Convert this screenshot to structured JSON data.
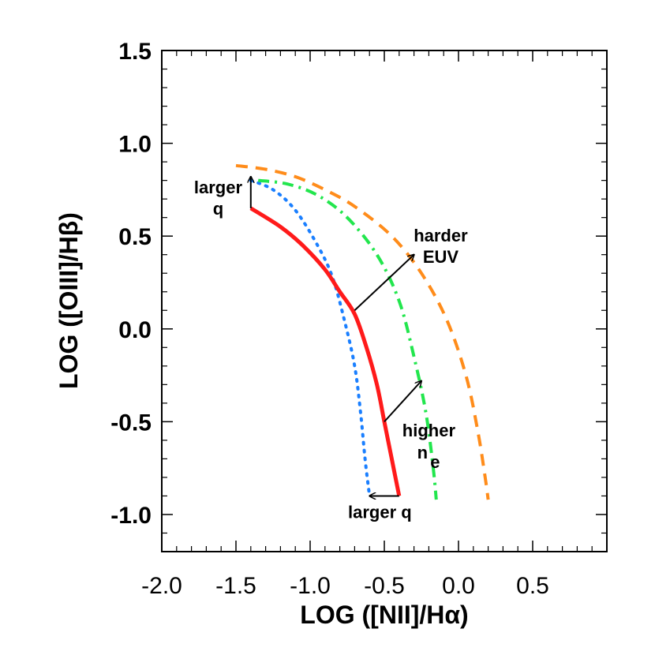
{
  "chart_data": {
    "type": "line",
    "title": "",
    "xlabel": "LOG ([NII]/Hα)",
    "ylabel": "LOG ([OIII]/Hβ)",
    "xlim": [
      -2.0,
      1.0
    ],
    "ylim": [
      -1.2,
      1.5
    ],
    "x_ticks": [
      {
        "value": -2.0,
        "label": "-2.0"
      },
      {
        "value": -1.5,
        "label": "-1.5"
      },
      {
        "value": -1.0,
        "label": "-1.0"
      },
      {
        "value": -0.5,
        "label": "-0.5"
      },
      {
        "value": 0.0,
        "label": "0.0"
      },
      {
        "value": 0.5,
        "label": "0.5"
      }
    ],
    "y_ticks": [
      {
        "value": -1.0,
        "label": "-1.0"
      },
      {
        "value": -0.5,
        "label": "-0.5"
      },
      {
        "value": 0.0,
        "label": "0.0"
      },
      {
        "value": 0.5,
        "label": "0.5"
      },
      {
        "value": 1.0,
        "label": "1.0"
      },
      {
        "value": 1.5,
        "label": "1.5"
      }
    ],
    "grid": false,
    "series": [
      {
        "style": "solid",
        "color": "#ff1a1a",
        "x": [
          -1.4,
          -1.2,
          -1.05,
          -0.9,
          -0.8,
          -0.7,
          -0.62,
          -0.55,
          -0.5,
          -0.45,
          -0.4
        ],
        "y": [
          0.65,
          0.55,
          0.45,
          0.32,
          0.2,
          0.08,
          -0.1,
          -0.3,
          -0.5,
          -0.7,
          -0.9
        ]
      },
      {
        "style": "dotted",
        "color": "#1a7fff",
        "x": [
          -1.4,
          -1.25,
          -1.1,
          -0.95,
          -0.85,
          -0.77,
          -0.7,
          -0.66,
          -0.63,
          -0.6
        ],
        "y": [
          0.8,
          0.75,
          0.64,
          0.45,
          0.28,
          0.05,
          -0.2,
          -0.45,
          -0.7,
          -0.9
        ]
      },
      {
        "style": "dashdot",
        "color": "#22e64d",
        "x": [
          -1.35,
          -1.15,
          -0.95,
          -0.75,
          -0.55,
          -0.4,
          -0.3,
          -0.22,
          -0.17,
          -0.15
        ],
        "y": [
          0.8,
          0.78,
          0.72,
          0.6,
          0.4,
          0.15,
          -0.15,
          -0.45,
          -0.75,
          -0.92
        ]
      },
      {
        "style": "dashed",
        "color": "#ff8c1a",
        "x": [
          -1.5,
          -1.3,
          -1.1,
          -0.9,
          -0.7,
          -0.45,
          -0.25,
          -0.08,
          0.05,
          0.13,
          0.18,
          0.2
        ],
        "y": [
          0.88,
          0.86,
          0.82,
          0.75,
          0.66,
          0.5,
          0.3,
          0.05,
          -0.25,
          -0.55,
          -0.8,
          -0.92
        ]
      }
    ],
    "annotations": [
      {
        "id": "larger_q_top",
        "lines": [
          "larger",
          "q"
        ],
        "x": -1.62,
        "y": 0.73
      },
      {
        "id": "harder_euv",
        "lines": [
          "harder",
          "EUV"
        ],
        "x": -0.12,
        "y": 0.47
      },
      {
        "id": "higher_ne",
        "lines": [
          "higher",
          "n",
          "e"
        ],
        "x": -0.2,
        "y": -0.58
      },
      {
        "id": "larger_q_bottom",
        "lines": [
          "larger q"
        ],
        "x": -0.53,
        "y": -1.02
      }
    ],
    "arrows": [
      {
        "from": [
          -1.4,
          0.65
        ],
        "to": [
          -1.4,
          0.82
        ]
      },
      {
        "from": [
          -0.7,
          0.1
        ],
        "to": [
          -0.3,
          0.4
        ]
      },
      {
        "from": [
          -0.5,
          -0.5
        ],
        "to": [
          -0.25,
          -0.28
        ]
      },
      {
        "from": [
          -0.4,
          -0.9
        ],
        "to": [
          -0.6,
          -0.9
        ]
      }
    ]
  }
}
